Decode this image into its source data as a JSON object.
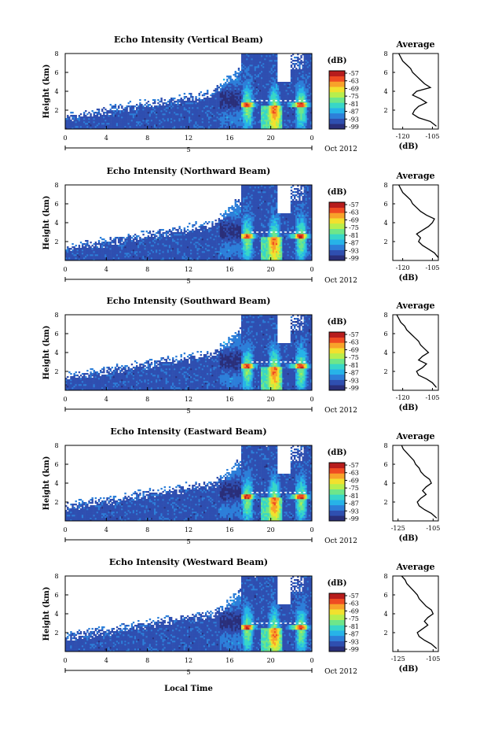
{
  "figure": {
    "xlabel": "Local Time",
    "date_label": "Oct 2012",
    "ylabel": "Height (km)",
    "colorbar_unit": "(dB)",
    "profile_title": "Average",
    "profile_xlabel": "(dB)"
  },
  "colors": {
    "colormap": [
      "#2a2f7a",
      "#2f4fb0",
      "#2d7fd9",
      "#27b3e8",
      "#38d6c8",
      "#6ee68a",
      "#b8ee4d",
      "#f2e12e",
      "#f8a22a",
      "#ef4b22",
      "#b71c1c"
    ],
    "line": "#000000"
  },
  "chart_data": [
    {
      "type": "heatmap",
      "title": "Echo Intensity (Vertical Beam)",
      "x_ticks": [
        "0",
        "4",
        "8",
        "12",
        "16",
        "20",
        "0"
      ],
      "x_sub": "5",
      "y_ticks": [
        "2",
        "4",
        "6",
        "8"
      ],
      "ylim": [
        0,
        8
      ],
      "xlim_hours": [
        0,
        24
      ],
      "colorbar_ticks": [
        "-57",
        "-63",
        "-69",
        "-75",
        "-81",
        "-87",
        "-93",
        "-99"
      ],
      "colorbar_range_db": [
        -99,
        -57
      ],
      "profile": {
        "title": "Average",
        "x_ticks": [
          "-120",
          "-105"
        ],
        "y_ticks": [
          "2",
          "4",
          "6",
          "8"
        ],
        "xlim": [
          -125,
          -102
        ],
        "ylim": [
          0,
          8
        ],
        "heights": [
          0.3,
          0.8,
          1.2,
          1.6,
          2.0,
          2.4,
          2.8,
          3.2,
          3.6,
          4.0,
          4.4,
          4.8,
          5.2,
          5.6,
          6.0,
          6.4,
          6.8,
          7.2,
          7.6,
          8.0
        ],
        "values": [
          -103,
          -106,
          -112,
          -115,
          -114,
          -112,
          -108,
          -111,
          -115,
          -113,
          -106,
          -109,
          -111,
          -113,
          -115,
          -116,
          -118,
          -120,
          -121,
          -122
        ]
      }
    },
    {
      "type": "heatmap",
      "title": "Echo Intensity (Northward Beam)",
      "x_ticks": [
        "0",
        "4",
        "8",
        "12",
        "16",
        "20",
        "0"
      ],
      "x_sub": "5",
      "y_ticks": [
        "2",
        "4",
        "6",
        "8"
      ],
      "ylim": [
        0,
        8
      ],
      "xlim_hours": [
        0,
        24
      ],
      "colorbar_ticks": [
        "-57",
        "-63",
        "-69",
        "-75",
        "-81",
        "-87",
        "-93",
        "-99"
      ],
      "colorbar_range_db": [
        -99,
        -57
      ],
      "profile": {
        "title": "Average",
        "x_ticks": [
          "-120",
          "-105"
        ],
        "y_ticks": [
          "2",
          "4",
          "6",
          "8"
        ],
        "xlim": [
          -125,
          -102
        ],
        "ylim": [
          0,
          8
        ],
        "heights": [
          0.3,
          0.8,
          1.2,
          1.6,
          2.0,
          2.4,
          2.8,
          3.2,
          3.6,
          4.0,
          4.4,
          4.8,
          5.2,
          5.6,
          6.0,
          6.4,
          6.8,
          7.2,
          7.6,
          8.0
        ],
        "values": [
          -102,
          -104,
          -107,
          -110,
          -112,
          -111,
          -113,
          -110,
          -107,
          -105,
          -104,
          -108,
          -111,
          -113,
          -115,
          -116,
          -118,
          -120,
          -121,
          -122
        ]
      }
    },
    {
      "type": "heatmap",
      "title": "Echo Intensity (Southward Beam)",
      "x_ticks": [
        "0",
        "4",
        "8",
        "12",
        "16",
        "20",
        "0"
      ],
      "x_sub": "5",
      "y_ticks": [
        "2",
        "4",
        "6",
        "8"
      ],
      "ylim": [
        0,
        8
      ],
      "xlim_hours": [
        0,
        24
      ],
      "colorbar_ticks": [
        "-57",
        "-63",
        "-69",
        "-75",
        "-81",
        "-87",
        "-93",
        "-99"
      ],
      "colorbar_range_db": [
        -99,
        -57
      ],
      "profile": {
        "title": "Average",
        "x_ticks": [
          "-120",
          "-105"
        ],
        "y_ticks": [
          "2",
          "4",
          "6",
          "8"
        ],
        "xlim": [
          -125,
          -102
        ],
        "ylim": [
          0,
          8
        ],
        "heights": [
          0.3,
          0.8,
          1.2,
          1.6,
          2.0,
          2.4,
          2.8,
          3.2,
          3.6,
          4.0,
          4.4,
          4.8,
          5.2,
          5.6,
          6.0,
          6.4,
          6.8,
          7.2,
          7.6,
          8.0
        ],
        "values": [
          -103,
          -105,
          -108,
          -112,
          -113,
          -110,
          -108,
          -112,
          -110,
          -107,
          -109,
          -111,
          -112,
          -114,
          -116,
          -118,
          -119,
          -121,
          -122,
          -123
        ]
      }
    },
    {
      "type": "heatmap",
      "title": "Echo Intensity (Eastward Beam)",
      "x_ticks": [
        "0",
        "4",
        "8",
        "12",
        "16",
        "20",
        "0"
      ],
      "x_sub": "5",
      "y_ticks": [
        "2",
        "4",
        "6",
        "8"
      ],
      "ylim": [
        0,
        8
      ],
      "xlim_hours": [
        0,
        24
      ],
      "colorbar_ticks": [
        "-57",
        "-63",
        "-69",
        "-75",
        "-81",
        "-87",
        "-93",
        "-99"
      ],
      "colorbar_range_db": [
        -99,
        -57
      ],
      "profile": {
        "title": "Average",
        "x_ticks": [
          "-125",
          "-105"
        ],
        "y_ticks": [
          "2",
          "4",
          "6",
          "8"
        ],
        "xlim": [
          -128,
          -102
        ],
        "ylim": [
          0,
          8
        ],
        "heights": [
          0.3,
          0.8,
          1.2,
          1.6,
          2.0,
          2.4,
          2.8,
          3.2,
          3.6,
          4.0,
          4.4,
          4.8,
          5.2,
          5.6,
          6.0,
          6.4,
          6.8,
          7.2,
          7.6,
          8.0
        ],
        "values": [
          -103,
          -106,
          -110,
          -113,
          -114,
          -112,
          -109,
          -111,
          -109,
          -106,
          -107,
          -110,
          -112,
          -113,
          -115,
          -116,
          -118,
          -120,
          -122,
          -123
        ]
      }
    },
    {
      "type": "heatmap",
      "title": "Echo Intensity (Westward Beam)",
      "x_ticks": [
        "0",
        "4",
        "8",
        "12",
        "16",
        "20",
        "0"
      ],
      "x_sub": "5",
      "y_ticks": [
        "2",
        "4",
        "6",
        "8"
      ],
      "ylim": [
        0,
        8
      ],
      "xlim_hours": [
        0,
        24
      ],
      "colorbar_ticks": [
        "-57",
        "-63",
        "-69",
        "-75",
        "-81",
        "-87",
        "-93",
        "-99"
      ],
      "colorbar_range_db": [
        -99,
        -57
      ],
      "profile": {
        "title": "Average",
        "x_ticks": [
          "-125",
          "-105"
        ],
        "y_ticks": [
          "2",
          "4",
          "6",
          "8"
        ],
        "xlim": [
          -128,
          -102
        ],
        "ylim": [
          0,
          8
        ],
        "heights": [
          0.3,
          0.8,
          1.2,
          1.6,
          2.0,
          2.4,
          2.8,
          3.2,
          3.6,
          4.0,
          4.4,
          4.8,
          5.2,
          5.6,
          6.0,
          6.4,
          6.8,
          7.2,
          7.6,
          8.0
        ],
        "values": [
          -103,
          -106,
          -110,
          -113,
          -114,
          -111,
          -108,
          -110,
          -108,
          -105,
          -106,
          -109,
          -111,
          -113,
          -114,
          -116,
          -118,
          -120,
          -121,
          -123
        ]
      }
    }
  ]
}
